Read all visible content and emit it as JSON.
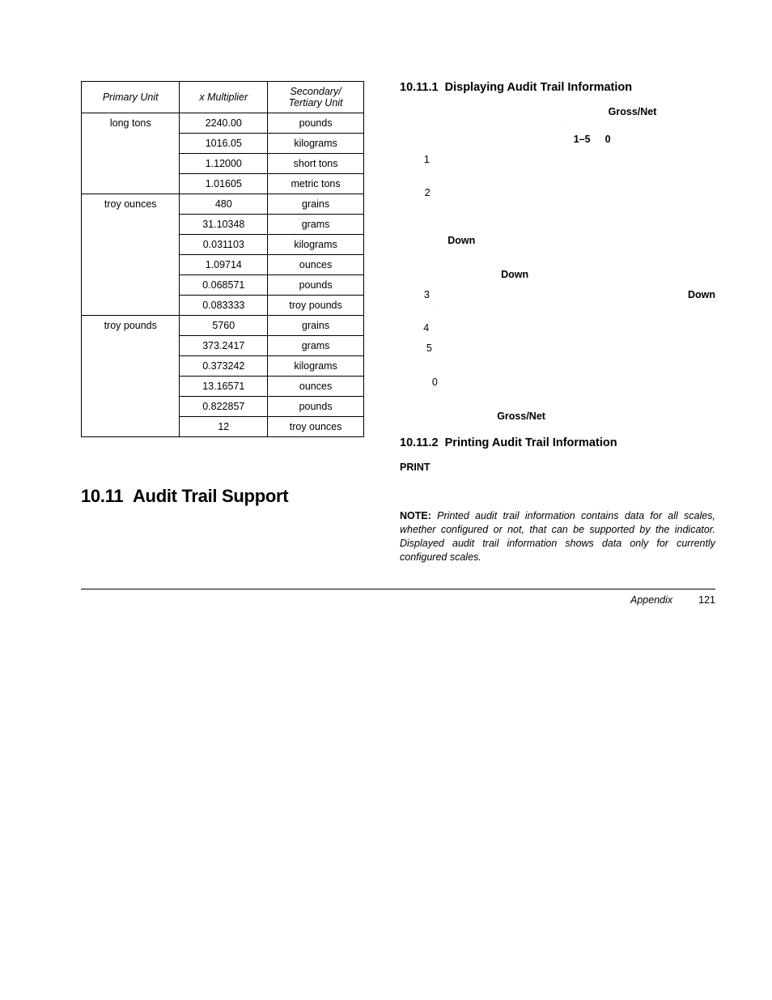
{
  "table": {
    "headers": [
      "Primary Unit",
      "x Multiplier",
      "Secondary/\nTertiary Unit"
    ],
    "groups": [
      {
        "primary": "long tons",
        "rows": [
          [
            "2240.00",
            "pounds"
          ],
          [
            "1016.05",
            "kilograms"
          ],
          [
            "1.12000",
            "short tons"
          ],
          [
            "1.01605",
            "metric tons"
          ]
        ]
      },
      {
        "primary": "troy ounces",
        "rows": [
          [
            "480",
            "grains"
          ],
          [
            "31.10348",
            "grams"
          ],
          [
            "0.031103",
            "kilograms"
          ],
          [
            "1.09714",
            "ounces"
          ],
          [
            "0.068571",
            "pounds"
          ],
          [
            "0.083333",
            "troy pounds"
          ]
        ]
      },
      {
        "primary": "troy pounds",
        "rows": [
          [
            "5760",
            "grains"
          ],
          [
            "373.2417",
            "grams"
          ],
          [
            "0.373242",
            "kilograms"
          ],
          [
            "13.16571",
            "ounces"
          ],
          [
            "0.822857",
            "pounds"
          ],
          [
            "12",
            "troy ounces"
          ]
        ]
      }
    ]
  },
  "left": {
    "section_number": "10.11",
    "section_title": "Audit Trail Support"
  },
  "right": {
    "sub1_num": "10.11.1",
    "sub1_title": "Displaying Audit Trail Information",
    "gross_net": "Gross/Net",
    "range": "1–5",
    "zero": "0",
    "one": "1",
    "two": "2",
    "three": "3",
    "four": "4",
    "five": "5",
    "zero2": "0",
    "down": "Down",
    "gross_net2": "Gross/Net",
    "sub2_num": "10.11.2",
    "sub2_title": "Printing Audit Trail Information",
    "print": "PRINT",
    "note_label": "NOTE:",
    "note_body": "Printed audit trail information contains data for all scales, whether configured or not, that can be supported by the indicator. Displayed audit trail information shows data only for currently configured scales."
  },
  "footer": {
    "appendix": "Appendix",
    "page": "121"
  }
}
